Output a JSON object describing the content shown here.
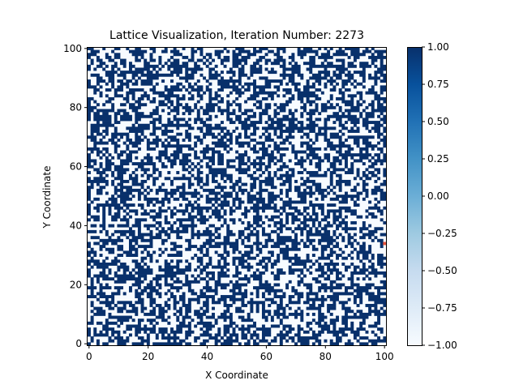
{
  "chart_data": {
    "type": "heatmap",
    "title": "Lattice Visualization, Iteration Number: 2273",
    "xlabel": "X Coordinate",
    "ylabel": "Y Coordinate",
    "grid_size": 101,
    "xlim": [
      0,
      101
    ],
    "ylim": [
      0,
      101
    ],
    "x_ticks": [
      0,
      20,
      40,
      60,
      80,
      100
    ],
    "y_ticks": [
      0,
      20,
      40,
      60,
      80,
      100
    ],
    "values": [
      -1,
      1
    ],
    "approx_fraction_positive": 0.5,
    "grid": false,
    "colormap": "Blues",
    "color_low": "#f7fbff",
    "color_high": "#08306b",
    "highlighted_cell": {
      "x": 100,
      "y": 34,
      "color": "#e5533b"
    },
    "colorbar": {
      "range": [
        -1.0,
        1.0
      ],
      "tick_labels": [
        "1.00",
        "0.75",
        "0.50",
        "0.25",
        "0.00",
        "−0.25",
        "−0.50",
        "−0.75",
        "−1.00"
      ],
      "tick_values": [
        1.0,
        0.75,
        0.5,
        0.25,
        0.0,
        -0.25,
        -0.5,
        -0.75,
        -1.0
      ]
    }
  }
}
